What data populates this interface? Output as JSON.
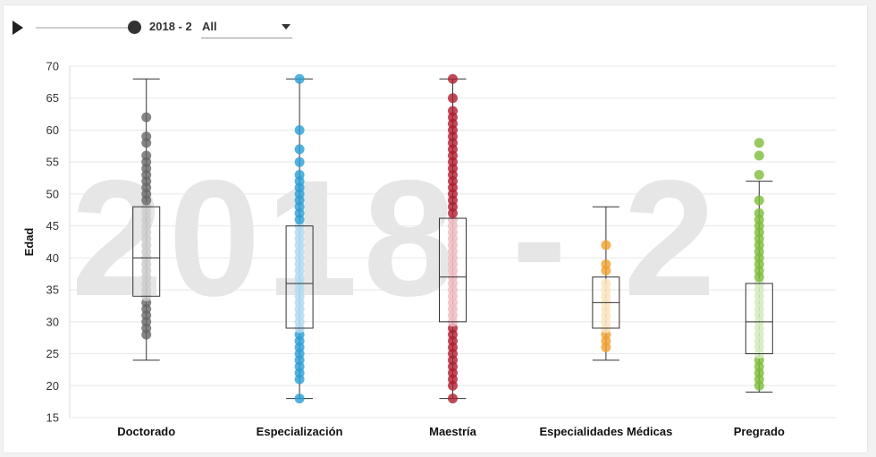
{
  "controls": {
    "period": "2018 - 2",
    "filter_selected": "All",
    "colors": {
      "text": "#333333",
      "play": "#222222"
    }
  },
  "chart_data": {
    "type": "boxplot",
    "watermark": "2018 - 2",
    "ylabel": "Edad",
    "xlabel": "",
    "ylim": [
      15,
      70
    ],
    "yticks": [
      15,
      20,
      25,
      30,
      35,
      40,
      45,
      50,
      55,
      60,
      65,
      70
    ],
    "grid": true,
    "categories": [
      "Doctorado",
      "Especialización",
      "Maestría",
      "Especialidades Médicas",
      "Pregrado"
    ],
    "series": [
      {
        "category": "Doctorado",
        "color": "#666666",
        "inner_color": "#cccccc",
        "min": 24,
        "q1": 34,
        "median": 40,
        "q3": 48,
        "max": 68,
        "points": [
          28,
          29,
          30,
          31,
          32,
          33,
          34,
          35,
          36,
          37,
          38,
          39,
          40,
          41,
          42,
          43,
          44,
          45,
          46,
          47,
          48,
          49,
          50,
          51,
          52,
          53,
          54,
          55,
          56,
          58,
          59,
          62
        ]
      },
      {
        "category": "Especialización",
        "color": "#2a9fd6",
        "inner_color": "#b3dcf1",
        "min": 18,
        "q1": 29,
        "median": 36,
        "q3": 45,
        "max": 68,
        "points": [
          18,
          21,
          22,
          23,
          24,
          25,
          26,
          27,
          28,
          29,
          30,
          31,
          32,
          33,
          34,
          35,
          36,
          37,
          38,
          39,
          40,
          41,
          42,
          43,
          44,
          45,
          46,
          47,
          48,
          49,
          50,
          51,
          52,
          53,
          55,
          57,
          60,
          68
        ]
      },
      {
        "category": "Maestría",
        "color": "#b01e2e",
        "inner_color": "#f0bcc2",
        "min": 18,
        "q1": 30,
        "median": 37,
        "q3": 46.2,
        "max": 68,
        "points": [
          18,
          20,
          21,
          22,
          23,
          24,
          25,
          26,
          27,
          28,
          29,
          30,
          31,
          32,
          33,
          34,
          35,
          36,
          37,
          38,
          39,
          40,
          41,
          42,
          43,
          44,
          45,
          46,
          47,
          48,
          49,
          50,
          51,
          52,
          53,
          54,
          55,
          56,
          57,
          58,
          59,
          60,
          61,
          62,
          63,
          65,
          68
        ]
      },
      {
        "category": "Especialidades Médicas",
        "color": "#f0a030",
        "inner_color": "#fce4c0",
        "min": 24,
        "q1": 29,
        "median": 33,
        "q3": 37,
        "max": 48,
        "points": [
          26,
          27,
          28,
          29,
          30,
          31,
          32,
          33,
          34,
          35,
          36,
          38,
          39,
          42
        ]
      },
      {
        "category": "Pregrado",
        "color": "#7cbd3a",
        "inner_color": "#d4ecbf",
        "min": 19,
        "q1": 25,
        "median": 30,
        "q3": 36,
        "max": 52,
        "points": [
          20,
          21,
          22,
          23,
          24,
          25,
          26,
          27,
          28,
          29,
          30,
          31,
          32,
          33,
          34,
          35,
          36,
          37,
          38,
          39,
          40,
          41,
          42,
          43,
          44,
          45,
          46,
          47,
          49,
          53,
          56,
          58
        ]
      }
    ]
  }
}
